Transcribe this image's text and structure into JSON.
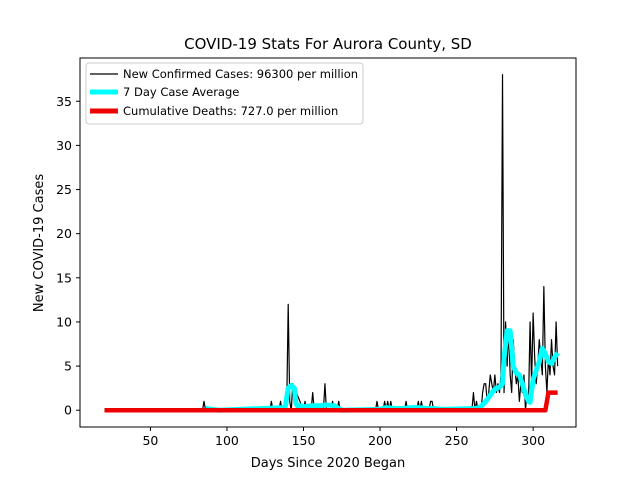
{
  "chart_data": {
    "type": "line",
    "title": "COVID-19 Stats For Aurora County, SD",
    "xlabel": "Days Since 2020 Began",
    "ylabel": "New COVID-19 Cases",
    "xlim": [
      4,
      328
    ],
    "ylim": [
      -1.9,
      39.9
    ],
    "xticks": [
      50,
      100,
      150,
      200,
      250,
      300
    ],
    "yticks": [
      0,
      5,
      10,
      15,
      20,
      25,
      30,
      35
    ],
    "grid": false,
    "legend_position": "top-left",
    "series": [
      {
        "name": "New Confirmed Cases: 96300 per million",
        "color": "#000000",
        "x": [
          20,
          84,
          85,
          86,
          128,
          129,
          130,
          134,
          135,
          136,
          139,
          140,
          141,
          142,
          143,
          150,
          151,
          152,
          155,
          156,
          157,
          163,
          164,
          165,
          168,
          169,
          170,
          172,
          173,
          174,
          197,
          198,
          199,
          202,
          203,
          204,
          205,
          206,
          207,
          208,
          216,
          217,
          218,
          224,
          225,
          226,
          227,
          228,
          232,
          233,
          234,
          235,
          236,
          260,
          261,
          262,
          263,
          264,
          266,
          267,
          268,
          269,
          270,
          271,
          272,
          273,
          274,
          275,
          276,
          277,
          278,
          279,
          280,
          281,
          282,
          283,
          284,
          285,
          286,
          287,
          288,
          289,
          290,
          291,
          292,
          293,
          294,
          295,
          296,
          297,
          298,
          299,
          300,
          301,
          302,
          303,
          304,
          305,
          306,
          307,
          308,
          309,
          310,
          311,
          312,
          313,
          314,
          315,
          316
        ],
        "y": [
          0,
          0,
          1,
          0,
          0,
          1,
          0,
          0,
          1,
          0,
          0,
          12,
          1,
          0,
          3,
          0,
          1,
          0,
          0,
          2,
          0,
          0,
          3,
          0,
          0,
          1,
          0,
          0,
          1,
          0,
          0,
          1,
          0,
          0,
          1,
          0,
          1,
          0,
          1,
          0,
          0,
          1,
          0,
          0,
          1,
          0,
          1,
          0,
          0,
          1,
          1,
          0,
          0,
          0,
          2,
          0,
          1,
          0,
          0,
          2,
          3,
          3,
          1,
          2,
          4,
          3,
          2,
          4,
          2,
          3,
          2,
          4,
          38,
          2,
          10,
          5,
          9,
          4,
          2,
          8,
          5,
          3,
          4,
          1,
          3,
          2,
          4,
          0,
          2,
          1,
          10,
          3,
          11,
          6,
          3,
          5,
          8,
          6,
          4,
          14,
          5,
          2,
          6,
          4,
          8,
          5,
          4,
          10,
          5
        ]
      },
      {
        "name": "7 Day Case Average",
        "color": "#00ffff",
        "x": [
          86,
          90,
          95,
          138,
          140,
          142,
          144,
          145,
          146,
          148,
          150,
          155,
          160,
          165,
          170,
          173,
          175,
          200,
          204,
          210,
          215,
          220,
          225,
          230,
          235,
          240,
          262,
          265,
          268,
          270,
          272,
          274,
          276,
          278,
          279,
          280,
          281,
          283,
          285,
          287,
          289,
          291,
          293,
          295,
          297,
          298,
          300,
          302,
          304,
          306,
          308,
          310,
          312,
          314,
          316
        ],
        "y": [
          0.2,
          0.1,
          0,
          0.3,
          2.5,
          2.8,
          2.5,
          0.8,
          0.5,
          0.5,
          0.4,
          0.5,
          0.5,
          0.6,
          0.5,
          0.2,
          0,
          0.1,
          0.3,
          0.2,
          0.2,
          0.3,
          0.3,
          0.2,
          0.2,
          0.1,
          0.2,
          0.3,
          0.8,
          1.2,
          1.7,
          2.2,
          2.5,
          2.6,
          2.8,
          3.0,
          5.9,
          9.0,
          9.0,
          5.0,
          4.2,
          4.0,
          3.0,
          1.8,
          1.0,
          0.9,
          3.5,
          4.5,
          5.5,
          7.0,
          6.4,
          5.5,
          5.3,
          6.0,
          6.5
        ]
      },
      {
        "name": "Cumulative Deaths: 727.0 per million",
        "color": "#ee0000",
        "x": [
          20,
          308,
          310,
          311,
          316
        ],
        "y": [
          0,
          0,
          2,
          2,
          2
        ]
      }
    ]
  }
}
